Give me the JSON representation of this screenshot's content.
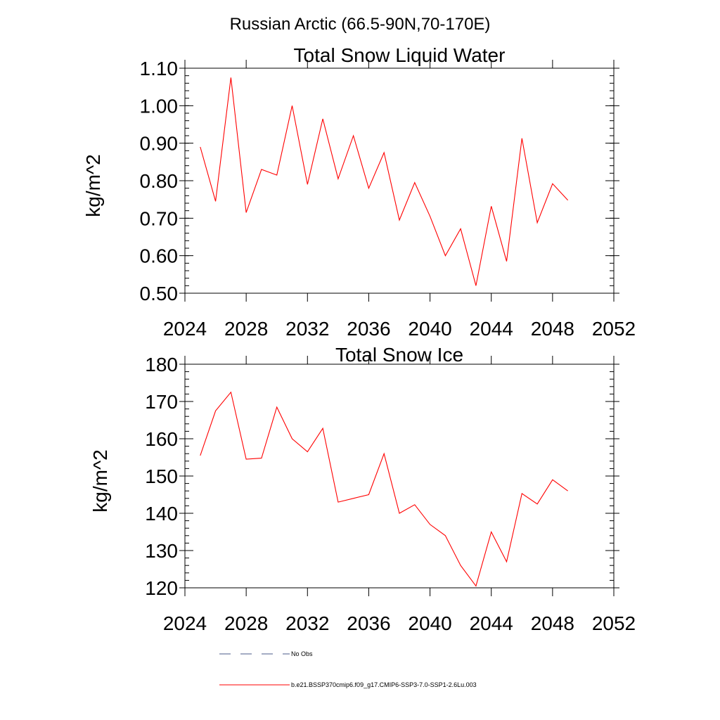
{
  "figure": {
    "title": "Russian Arctic (66.5-90N,70-170E)"
  },
  "chart_data": [
    {
      "type": "line",
      "title": "Total Snow Liquid Water",
      "xlabel": "",
      "ylabel": "kg/m^2",
      "xlim": [
        2024,
        2052
      ],
      "ylim": [
        0.5,
        1.1
      ],
      "xticks": [
        2024,
        2028,
        2032,
        2036,
        2040,
        2044,
        2048,
        2052
      ],
      "xtick_labels": [
        "2024",
        "2028",
        "2032",
        "2036",
        "2040",
        "2044",
        "2048",
        "2052"
      ],
      "yticks": [
        0.5,
        0.6,
        0.7,
        0.8,
        0.9,
        1.0,
        1.1
      ],
      "ytick_labels": [
        "0.50",
        "0.60",
        "0.70",
        "0.80",
        "0.90",
        "1.00",
        "1.10"
      ],
      "x": [
        2025,
        2026,
        2027,
        2028,
        2029,
        2030,
        2031,
        2032,
        2033,
        2034,
        2035,
        2036,
        2037,
        2038,
        2039,
        2040,
        2041,
        2042,
        2043,
        2044,
        2045,
        2046,
        2047,
        2048,
        2049
      ],
      "series": [
        {
          "name": "b.e21.BSSP370cmip6.f09_g17.CMIP6-SSP3-7.0-SSP1-2.6Lu.003",
          "color": "#ff0000",
          "values": [
            0.89,
            0.745,
            1.075,
            0.715,
            0.83,
            0.815,
            1.0,
            0.79,
            0.965,
            0.805,
            0.92,
            0.78,
            0.875,
            0.695,
            0.795,
            0.705,
            0.6,
            0.672,
            0.52,
            0.732,
            0.585,
            0.913,
            0.688,
            0.792,
            0.748
          ]
        }
      ]
    },
    {
      "type": "line",
      "title": "Total Snow Ice",
      "xlabel": "",
      "ylabel": "kg/m^2",
      "xlim": [
        2024,
        2052
      ],
      "ylim": [
        120,
        180
      ],
      "xticks": [
        2024,
        2028,
        2032,
        2036,
        2040,
        2044,
        2048,
        2052
      ],
      "xtick_labels": [
        "2024",
        "2028",
        "2032",
        "2036",
        "2040",
        "2044",
        "2048",
        "2052"
      ],
      "yticks": [
        120,
        130,
        140,
        150,
        160,
        170,
        180
      ],
      "ytick_labels": [
        "120",
        "130",
        "140",
        "150",
        "160",
        "170",
        "180"
      ],
      "x": [
        2025,
        2026,
        2027,
        2028,
        2029,
        2030,
        2031,
        2032,
        2033,
        2034,
        2035,
        2036,
        2037,
        2038,
        2039,
        2040,
        2041,
        2042,
        2043,
        2044,
        2045,
        2046,
        2047,
        2048,
        2049
      ],
      "series": [
        {
          "name": "b.e21.BSSP370cmip6.f09_g17.CMIP6-SSP3-7.0-SSP1-2.6Lu.003",
          "color": "#ff0000",
          "values": [
            155.5,
            167.5,
            172.5,
            154.5,
            154.8,
            168.5,
            160.0,
            156.5,
            162.8,
            143.0,
            144.0,
            145.0,
            156.0,
            140.0,
            142.3,
            137.0,
            134.0,
            126.0,
            120.5,
            135.0,
            127.0,
            145.3,
            142.5,
            149.0,
            146.0
          ]
        }
      ]
    }
  ],
  "legend": {
    "placement": "bottom-left",
    "items": [
      {
        "label": "No Obs",
        "color": "#4a5a8a",
        "style": "dashed"
      },
      {
        "label": "b.e21.BSSP370cmip6.f09_g17.CMIP6-SSP3-7.0-SSP1-2.6Lu.003",
        "color": "#ff0000",
        "style": "solid"
      }
    ]
  }
}
